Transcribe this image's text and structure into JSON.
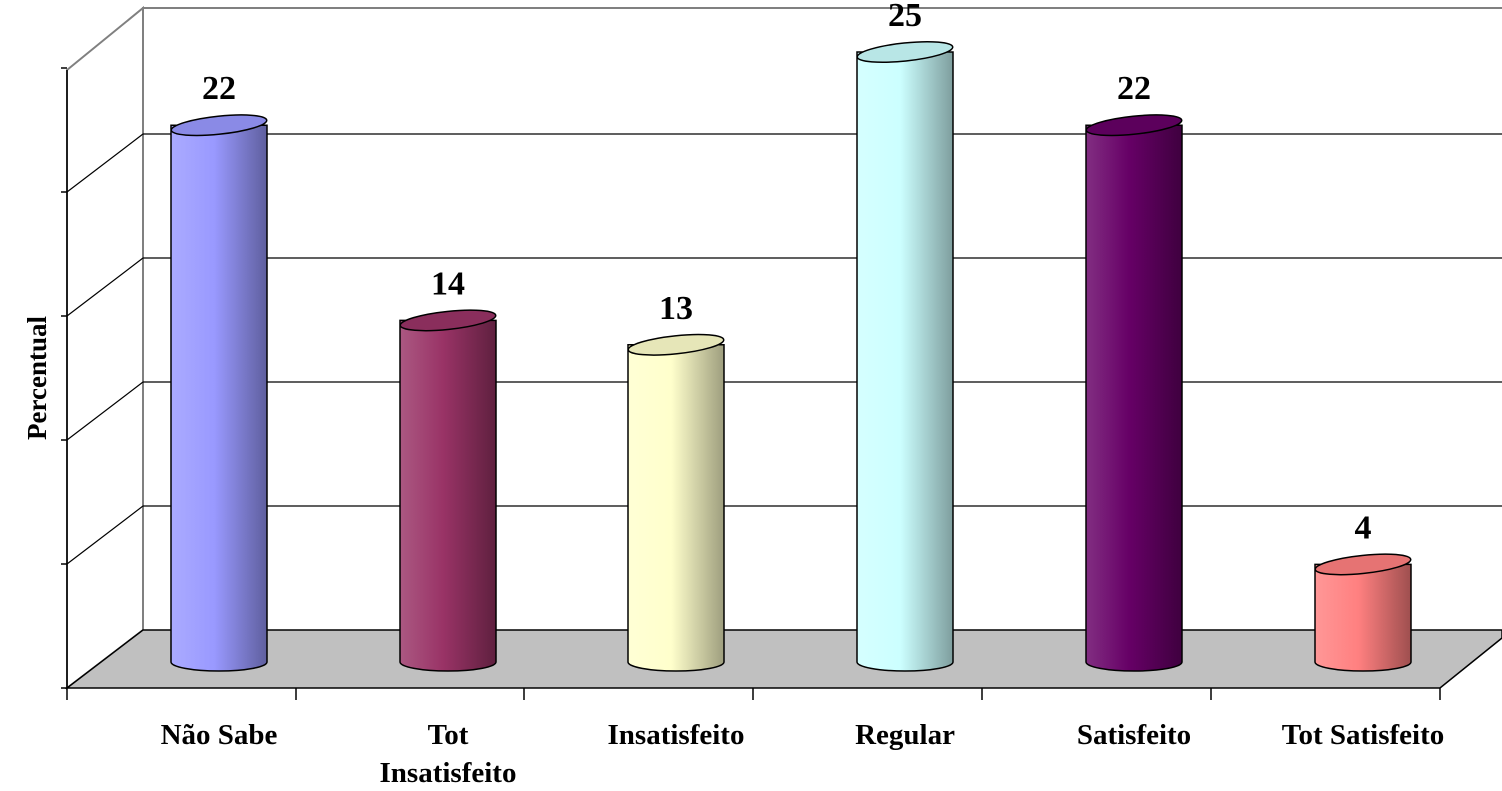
{
  "chart_data": {
    "type": "bar",
    "style": "3d-cylinder",
    "title": "",
    "xlabel": "",
    "ylabel": "Percentual",
    "ylim": [
      0,
      25
    ],
    "grid": true,
    "legend": "none",
    "categories": [
      "Não Sabe",
      "Tot Insatisfeito",
      "Insatisfeito",
      "Regular",
      "Satisfeito",
      "Tot Satisfeito"
    ],
    "category_lines": [
      [
        "Não Sabe"
      ],
      [
        "Tot",
        "Insatisfeito"
      ],
      [
        "Insatisfeito"
      ],
      [
        "Regular"
      ],
      [
        "Satisfeito"
      ],
      [
        "Tot Satisfeito"
      ]
    ],
    "values": [
      22,
      14,
      13,
      25,
      22,
      4
    ],
    "data_labels": [
      "22",
      "14",
      "13",
      "25",
      "22",
      "4"
    ],
    "colors": [
      "#9999ff",
      "#993366",
      "#ffffcc",
      "#ccffff",
      "#660066",
      "#ff8080"
    ],
    "floor_color": "#c0c0c0"
  }
}
